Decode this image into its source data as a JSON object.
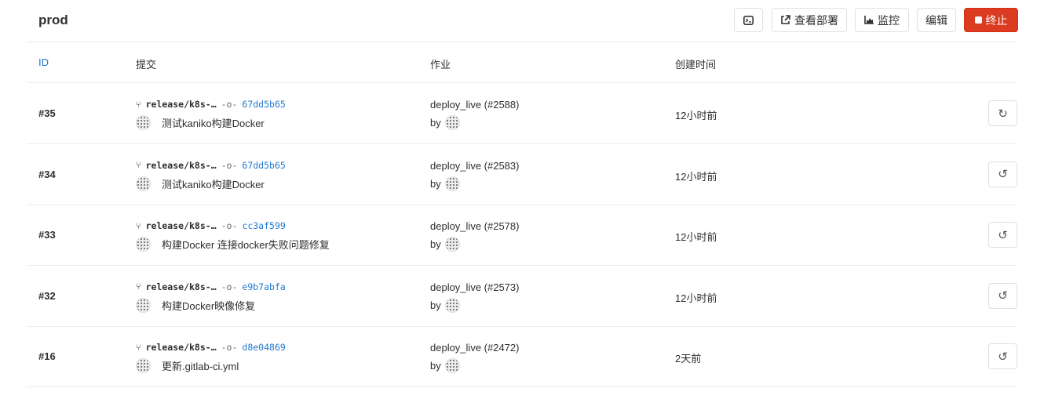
{
  "header": {
    "title": "prod",
    "buttons": {
      "terminal_icon": "terminal-icon",
      "view_deployment": "查看部署",
      "monitoring": "监控",
      "edit": "编辑",
      "stop": "终止"
    }
  },
  "columns": {
    "id": "ID",
    "commit": "提交",
    "job": "作业",
    "created": "创建时间"
  },
  "rows": [
    {
      "id": "#35",
      "branch": "release/k8s-…",
      "sha": "67dd5b65",
      "message": "测试kaniko构建Docker",
      "job": "deploy_live (#2588)",
      "by": "by",
      "created": "12小时前",
      "action": "redeploy",
      "action_glyph": "↻"
    },
    {
      "id": "#34",
      "branch": "release/k8s-…",
      "sha": "67dd5b65",
      "message": "测试kaniko构建Docker",
      "job": "deploy_live (#2583)",
      "by": "by",
      "created": "12小时前",
      "action": "rollback",
      "action_glyph": "↺"
    },
    {
      "id": "#33",
      "branch": "release/k8s-…",
      "sha": "cc3af599",
      "message": "构建Docker 连接docker失败问题修复",
      "job": "deploy_live (#2578)",
      "by": "by",
      "created": "12小时前",
      "action": "rollback",
      "action_glyph": "↺"
    },
    {
      "id": "#32",
      "branch": "release/k8s-…",
      "sha": "e9b7abfa",
      "message": "构建Docker映像修复",
      "job": "deploy_live (#2573)",
      "by": "by",
      "created": "12小时前",
      "action": "rollback",
      "action_glyph": "↺"
    },
    {
      "id": "#16",
      "branch": "release/k8s-…",
      "sha": "d8e04869",
      "message": "更新.gitlab-ci.yml",
      "job": "deploy_live (#2472)",
      "by": "by",
      "created": "2天前",
      "action": "rollback",
      "action_glyph": "↺"
    }
  ]
}
